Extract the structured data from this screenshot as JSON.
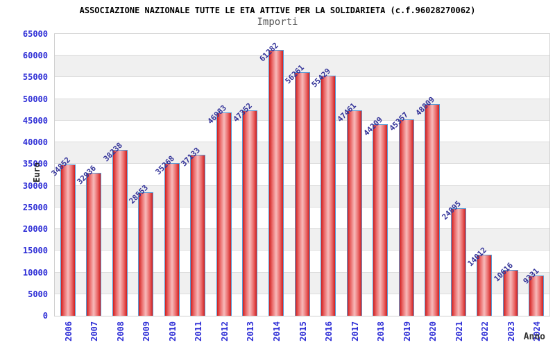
{
  "header": {
    "title": "ASSOCIAZIONE NAZIONALE TUTTE LE ETA ATTIVE PER LA SOLIDARIETA (c.f.96028270062)",
    "subtitle": "Importi"
  },
  "chart_data": {
    "type": "bar",
    "title": "Importi",
    "categories": [
      "2006",
      "2007",
      "2008",
      "2009",
      "2010",
      "2011",
      "2012",
      "2013",
      "2014",
      "2015",
      "2016",
      "2017",
      "2018",
      "2019",
      "2020",
      "2021",
      "2022",
      "2023",
      "2024"
    ],
    "values": [
      34852,
      32936,
      38238,
      28553,
      35268,
      37133,
      46983,
      47352,
      61282,
      56261,
      55429,
      47461,
      44209,
      45357,
      48809,
      24895,
      14012,
      10616,
      9331
    ],
    "xlabel": "Anno",
    "ylabel": "Euro",
    "ylim": [
      0,
      65000
    ],
    "ytick_step": 5000,
    "grid": "horizontal-bands",
    "legend": "none",
    "colors": {
      "bar_edge_red": "#cf1f1f",
      "bar_mid_red": "#ea6868",
      "bar_highlight": "#f7baba",
      "bar_border_blue": "#5b9bd5",
      "axis_tick_blue": "#2d2dd6",
      "value_label_navy": "#333399",
      "band_gray": "#f0f0f0",
      "gridline_gray": "#dcdcdc",
      "plot_border_gray": "#cfcfcf",
      "subtitle_gray": "#555555"
    }
  }
}
